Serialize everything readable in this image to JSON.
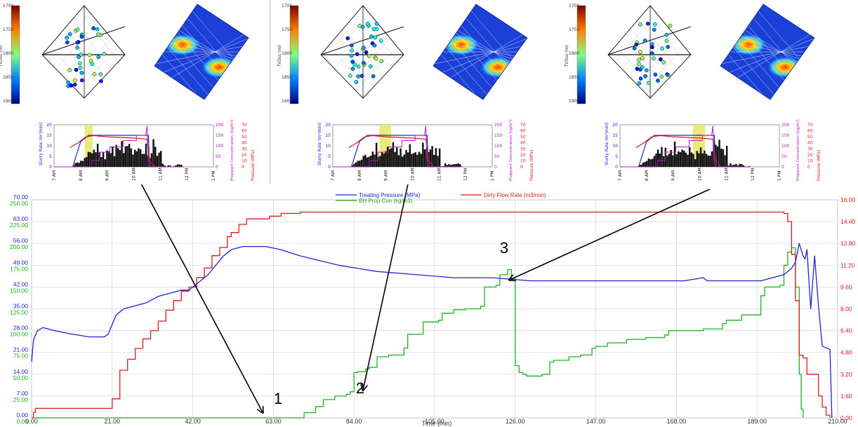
{
  "colors": {
    "blue": "#1f23d6",
    "red": "#e01818",
    "green": "#1ab51a",
    "magenta": "#b21fc2",
    "yellow": "#e8e866",
    "dark": "#111111",
    "grid": "#cfd6dd"
  },
  "panels": [
    {
      "depth_label": "TVDss (m)",
      "depth_ticks": [
        "1700",
        "1750",
        "1800",
        "1850",
        "1900"
      ],
      "hours": [
        "7 AM",
        "8 AM",
        "9 AM",
        "10 AM",
        "11 AM",
        "12 PM",
        "1 PM"
      ],
      "y_left_label": "Slurry Rate (m³/min)",
      "y_left_ticks": [
        "0",
        "5",
        "10",
        "15",
        "20"
      ],
      "y_mid_label": "Proppant Concentration (kg/m³)",
      "y_mid_ticks": [
        "0",
        "50",
        "100",
        "150",
        "200"
      ],
      "y_right_label": "Pressure (MPa)",
      "y_right_ticks": [
        "0",
        "10",
        "20",
        "30",
        "40",
        "50",
        "60",
        "70"
      ],
      "highlight": [
        1.15,
        1.45
      ]
    },
    {
      "depth_label": "TVDss (m)",
      "depth_ticks": [
        "1700",
        "1750",
        "1800",
        "1850",
        "1900"
      ],
      "hours": [
        "7 AM",
        "8 AM",
        "9 AM",
        "10 AM",
        "11 AM",
        "12 PM",
        "1 PM"
      ],
      "y_left_label": "Slurry Rate (m³/min)",
      "y_left_ticks": [
        "0",
        "5",
        "10",
        "15",
        "20"
      ],
      "y_mid_label": "Proppant Concentration (kg/m³)",
      "y_mid_ticks": [
        "0",
        "50",
        "100",
        "150",
        "200"
      ],
      "y_right_label": "Pressure (MPa)",
      "y_right_ticks": [
        "0",
        "10",
        "20",
        "30",
        "40",
        "50",
        "60",
        "70"
      ],
      "highlight": [
        1.75,
        2.2
      ]
    },
    {
      "depth_label": "TVDss (m)",
      "depth_ticks": [
        "1700",
        "1750",
        "1800",
        "1850",
        "1900"
      ],
      "hours": [
        "7 AM",
        "8 AM",
        "9 AM",
        "10 AM",
        "11 AM",
        "12 PM",
        "1 PM"
      ],
      "y_left_label": "Slurry Rate (m³/min)",
      "y_left_ticks": [
        "0",
        "5",
        "10",
        "15",
        "20"
      ],
      "y_mid_label": "Proppant Concentration (kg/m³)",
      "y_mid_ticks": [
        "0",
        "50",
        "100",
        "150",
        "200"
      ],
      "y_right_label": "Pressure (MPa)",
      "y_right_ticks": [
        "0",
        "10",
        "20",
        "30",
        "40",
        "50",
        "60",
        "70"
      ],
      "highlight": [
        2.75,
        3.2
      ]
    }
  ],
  "chart_data": {
    "type": "line",
    "xlabel": "Time (min)",
    "xlim": [
      0,
      210
    ],
    "x_ticks": [
      "0.00",
      "21.00",
      "42.00",
      "63.00",
      "84.00",
      "105.00",
      "126.00",
      "147.00",
      "168.00",
      "189.00",
      "210.00"
    ],
    "y_left_outer": {
      "color": "#1f23d6",
      "range": [
        0,
        70
      ],
      "ticks": [
        "0.00",
        "7.00",
        "14.00",
        "21.00",
        "28.00",
        "35.00",
        "42.00",
        "49.00",
        "56.00",
        "63.00",
        "70.00"
      ]
    },
    "y_left_inner": {
      "color": "#1ab51a",
      "range": [
        0,
        250
      ],
      "ticks": [
        "0.00",
        "25.00",
        "50.00",
        "75.00",
        "100.00",
        "125.00",
        "150.00",
        "175.00",
        "200.00",
        "225.00",
        "250.00"
      ]
    },
    "y_right": {
      "color": "#e01818",
      "range": [
        0,
        16
      ],
      "ticks": [
        "0.00",
        "1.60",
        "3.20",
        "4.80",
        "6.40",
        "8.00",
        "9.60",
        "11.20",
        "12.80",
        "14.40",
        "16.00"
      ]
    },
    "legend": [
      {
        "name": "Treating Pressure (MPa)",
        "color": "#1f23d6"
      },
      {
        "name": "Dirty Flow Rate (m3/min)",
        "color": "#e01818"
      },
      {
        "name": "BH Prop Con (kg/m3)",
        "color": "#1ab51a"
      }
    ],
    "series": [
      {
        "name": "Treating Pressure (MPa)",
        "axis": "left_outer",
        "x": [
          0,
          0.5,
          1.5,
          3,
          6,
          10,
          15,
          19,
          20,
          21,
          22,
          24,
          27,
          30,
          33,
          36,
          39,
          41,
          43,
          46,
          48,
          50,
          52,
          55,
          58,
          61,
          65,
          70,
          80,
          90,
          100,
          110,
          120,
          130,
          140,
          150,
          160,
          170,
          175,
          176,
          177,
          180,
          185,
          190,
          193,
          196,
          198,
          199,
          200,
          201,
          201.5,
          202,
          203,
          204,
          205,
          206,
          208,
          208.5
        ],
        "y": [
          18,
          25,
          28,
          29,
          28,
          27,
          26,
          26,
          27,
          30,
          33,
          35,
          36,
          37,
          39,
          40,
          41,
          41,
          43,
          46,
          49,
          52,
          54,
          55,
          55,
          55,
          54,
          52,
          49,
          47,
          46,
          45,
          45,
          44,
          44,
          44,
          44,
          44,
          45,
          44,
          44,
          44,
          44,
          44,
          45,
          46,
          48,
          50,
          56,
          52,
          51,
          54,
          35,
          52,
          36,
          23,
          22,
          0
        ]
      },
      {
        "name": "Dirty Flow Rate (m3/min)",
        "axis": "right",
        "x": [
          0,
          0.5,
          1,
          20,
          21,
          23,
          25,
          27,
          29,
          31,
          33,
          35,
          37,
          39,
          41,
          43,
          45,
          47,
          49,
          51,
          52,
          54,
          56,
          58,
          60,
          62,
          65,
          70,
          100,
          150,
          190,
          196,
          197,
          198,
          199,
          200,
          201,
          202,
          203,
          204,
          205,
          206,
          207,
          208
        ],
        "y": [
          0,
          0.4,
          0.7,
          0.7,
          1.4,
          3.5,
          4.3,
          5.1,
          5.8,
          6.4,
          7.1,
          7.9,
          8.6,
          9.3,
          9.6,
          10.3,
          11,
          11.9,
          12.5,
          13.3,
          13.6,
          14.2,
          14.6,
          14.6,
          14.6,
          14.8,
          15,
          15.1,
          15.1,
          15.1,
          15.1,
          15,
          14.4,
          12,
          8.6,
          4.6,
          4.4,
          3.2,
          3.2,
          3.2,
          1.6,
          0.8,
          0.2,
          0
        ]
      },
      {
        "name": "BH Prop Con (kg/m3)",
        "axis": "left_inner",
        "x": [
          0,
          70,
          71,
          74,
          76,
          79,
          81,
          82,
          83,
          84,
          85,
          87,
          88,
          90,
          93,
          97,
          98,
          101,
          102,
          106,
          107,
          110,
          113,
          117,
          118,
          121,
          122,
          124,
          125,
          126,
          127,
          128,
          129,
          130,
          133,
          135,
          136,
          140,
          143,
          146,
          147,
          150,
          155,
          160,
          165,
          166,
          170,
          175,
          180,
          181,
          185,
          190,
          191,
          195,
          196,
          197,
          198,
          199,
          200,
          200.5,
          201
        ],
        "y": [
          0,
          0,
          6,
          13,
          21,
          25,
          25,
          27,
          30,
          52,
          53,
          56,
          58,
          70,
          72,
          80,
          96,
          96,
          110,
          112,
          120,
          124,
          125,
          128,
          150,
          152,
          164,
          170,
          160,
          60,
          52,
          50,
          48,
          48,
          50,
          64,
          66,
          70,
          72,
          80,
          82,
          86,
          90,
          92,
          95,
          100,
          100,
          102,
          108,
          112,
          118,
          140,
          150,
          152,
          175,
          190,
          195,
          150,
          50,
          10,
          0
        ]
      }
    ],
    "annotations": [
      {
        "text": "1",
        "x": 63,
        "y": 3,
        "target_panel": 0
      },
      {
        "text": "2",
        "x": 86,
        "y": 53,
        "target_panel": 1
      },
      {
        "text": "3",
        "x": 125,
        "y": 170,
        "target_panel": 2
      }
    ]
  }
}
